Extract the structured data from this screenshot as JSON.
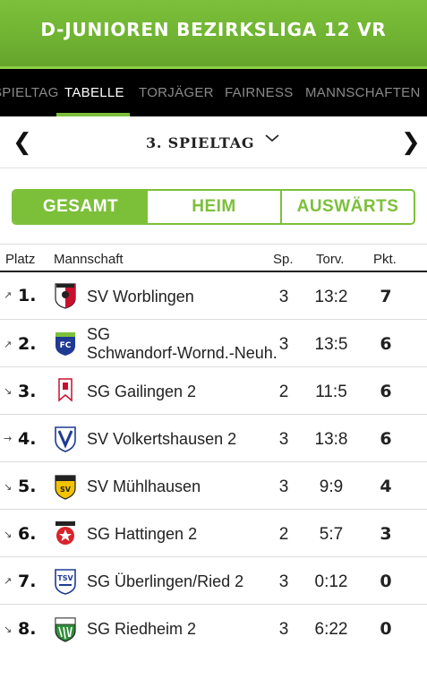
{
  "header": {
    "title": "D-JUNIOREN BEZIRKSLIGA 12 VR"
  },
  "tabs": [
    {
      "label": "SPIELTAG",
      "active": false
    },
    {
      "label": "TABELLE",
      "active": true
    },
    {
      "label": "TORJÄGER",
      "active": false
    },
    {
      "label": "FAIRNESS",
      "active": false
    },
    {
      "label": "MANNSCHAFTEN",
      "active": false
    }
  ],
  "round": {
    "prev_icon": "chevron-left-icon",
    "label": "3. SPIELTAG",
    "dropdown_icon": "chevron-down-icon",
    "next_icon": "chevron-right-icon"
  },
  "filter": {
    "options": [
      "GESAMT",
      "HEIM",
      "AUSWÄRTS"
    ],
    "selected": "GESAMT"
  },
  "colors": {
    "accent": "#7cc03a",
    "tabbar": "#000000"
  },
  "table": {
    "columns": {
      "rank": "Platz",
      "team": "Mannschaft",
      "games": "Sp.",
      "goals": "Torv.",
      "points": "Pkt."
    },
    "rows": [
      {
        "trend": "up",
        "rank": "1.",
        "team": "SV Worblingen",
        "games": "3",
        "goals": "13:2",
        "points": "7",
        "crest": "red-white-shield-crest-icon"
      },
      {
        "trend": "up",
        "rank": "2.",
        "team": "SG Schwandorf-Wornd.-Neuh.",
        "team_line1": "SG",
        "team_line2": "Schwandorf-Wornd.-Neuh.",
        "games": "3",
        "goals": "13:5",
        "points": "6",
        "crest": "fc-blue-shield-crest-icon"
      },
      {
        "trend": "down",
        "rank": "3.",
        "team": "SG Gailingen 2",
        "games": "2",
        "goals": "11:5",
        "points": "6",
        "crest": "red-banner-crest-icon"
      },
      {
        "trend": "same",
        "rank": "4.",
        "team": "SV Volkertshausen 2",
        "games": "3",
        "goals": "13:8",
        "points": "6",
        "crest": "blue-v-shield-crest-icon"
      },
      {
        "trend": "down",
        "rank": "5.",
        "team": "SV Mühlhausen",
        "games": "3",
        "goals": "9:9",
        "points": "4",
        "crest": "yellow-shield-crest-icon"
      },
      {
        "trend": "down",
        "rank": "6.",
        "team": "SG Hattingen 2",
        "games": "2",
        "goals": "5:7",
        "points": "3",
        "crest": "red-star-crest-icon"
      },
      {
        "trend": "up",
        "rank": "7.",
        "team": "SG Überlingen/Ried 2",
        "games": "3",
        "goals": "0:12",
        "points": "0",
        "crest": "tsv-blue-crest-icon"
      },
      {
        "trend": "down",
        "rank": "8.",
        "team": "SG Riedheim 2",
        "games": "3",
        "goals": "6:22",
        "points": "0",
        "crest": "svr-green-crest-icon"
      }
    ]
  }
}
